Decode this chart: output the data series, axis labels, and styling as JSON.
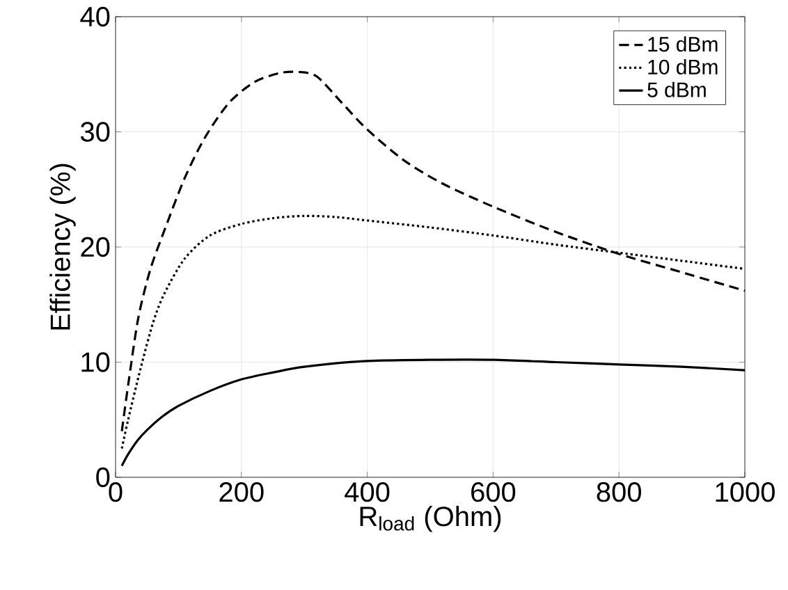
{
  "chart_data": {
    "type": "line",
    "xlabel": "R$_{load}$ (Ohm)",
    "ylabel": "Efficiency (%)",
    "xlim": [
      0,
      1000
    ],
    "ylim": [
      0,
      40
    ],
    "xticks": [
      0,
      200,
      400,
      600,
      800,
      1000
    ],
    "yticks": [
      0,
      10,
      20,
      30,
      40
    ],
    "grid": true,
    "legend": "top right",
    "series": [
      {
        "name": "15 dBm",
        "color": "#000000",
        "line_style": "dashed",
        "x": [
          10,
          20,
          36,
          55,
          78,
          110,
          142,
          180,
          220,
          260,
          290,
          320,
          360,
          400,
          459,
          520,
          600,
          700,
          800,
          900,
          1000
        ],
        "values": [
          4,
          8,
          13.8,
          18,
          21.5,
          26,
          29.5,
          32.5,
          34.3,
          35.1,
          35.2,
          34.8,
          32.5,
          30.2,
          27.5,
          25.5,
          23.5,
          21.3,
          19.4,
          17.8,
          16.2
        ]
      },
      {
        "name": "10 dBm",
        "color": "#000000",
        "line_style": "dotted",
        "x": [
          10,
          20,
          40,
          60,
          78,
          110,
          150,
          200,
          250,
          300,
          350,
          400,
          500,
          600,
          700,
          800,
          900,
          1000
        ],
        "values": [
          2.5,
          5,
          9.5,
          13.5,
          16,
          19,
          21,
          22,
          22.5,
          22.7,
          22.6,
          22.3,
          21.7,
          21,
          20.2,
          19.5,
          18.8,
          18.1
        ]
      },
      {
        "name": "5 dBm",
        "color": "#000000",
        "line_style": "solid",
        "x": [
          10,
          20,
          35,
          50,
          75,
          100,
          150,
          200,
          250,
          300,
          400,
          500,
          600,
          700,
          800,
          900,
          1000
        ],
        "values": [
          1,
          2,
          3.2,
          4.1,
          5.3,
          6.2,
          7.5,
          8.5,
          9.1,
          9.6,
          10.1,
          10.2,
          10.2,
          10,
          9.8,
          9.6,
          9.3
        ]
      }
    ]
  }
}
